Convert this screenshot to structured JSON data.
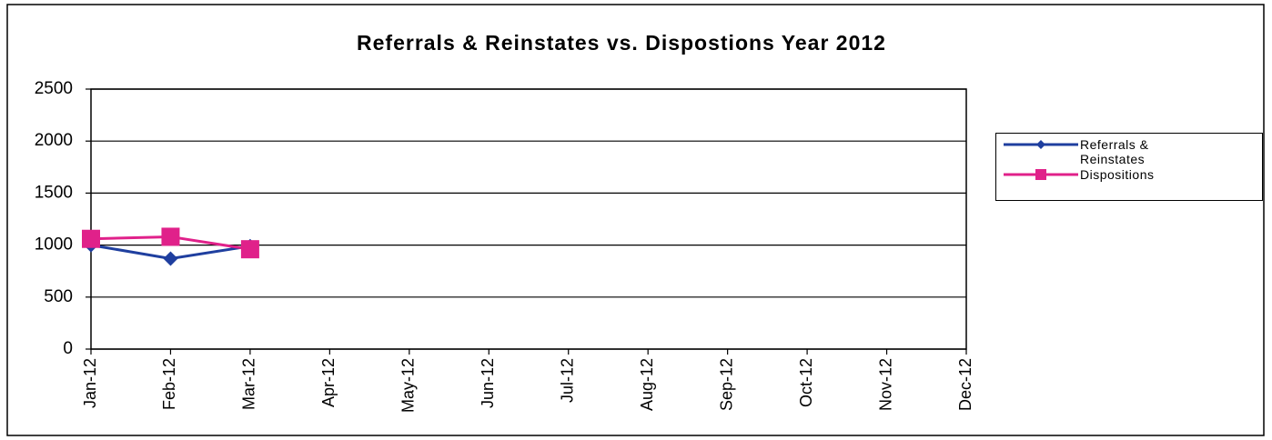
{
  "chart_data": {
    "type": "line",
    "title": "Referrals & Reinstates vs. Dispostions  Year 2012",
    "categories": [
      "Jan-12",
      "Feb-12",
      "Mar-12",
      "Apr-12",
      "May-12",
      "Jun-12",
      "Jul-12",
      "Aug-12",
      "Sep-12",
      "Oct-12",
      "Nov-12",
      "Dec-12"
    ],
    "series": [
      {
        "name": "Referrals & Reinstates",
        "color": "#1f3f9f",
        "marker": "diamond",
        "values": [
          1000,
          870,
          990,
          null,
          null,
          null,
          null,
          null,
          null,
          null,
          null,
          null
        ]
      },
      {
        "name": "Dispositions",
        "color": "#e0218a",
        "marker": "square",
        "values": [
          1060,
          1080,
          960,
          null,
          null,
          null,
          null,
          null,
          null,
          null,
          null,
          null
        ]
      }
    ],
    "ylim": [
      0,
      2500
    ],
    "yticks": [
      0,
      500,
      1000,
      1500,
      2000,
      2500
    ],
    "grid": true,
    "legend": "right"
  }
}
